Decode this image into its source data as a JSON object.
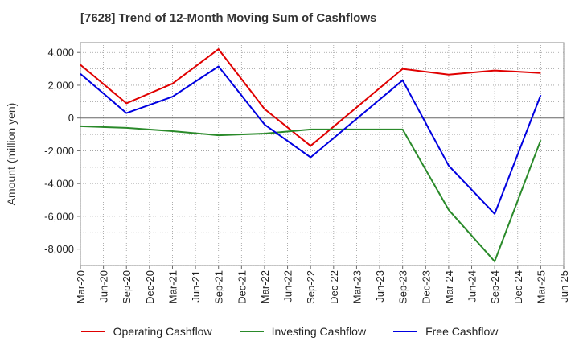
{
  "chart_data": {
    "type": "line",
    "title": "[7628]  Trend of 12-Month Moving Sum of Cashflows",
    "ylabel": "Amount (million yen)",
    "xlabel": "",
    "ylim": [
      -9000,
      4600
    ],
    "y_ticks": [
      4000,
      2000,
      0,
      -2000,
      -4000,
      -6000,
      -8000
    ],
    "y_tick_labels": [
      "4,000",
      "2,000",
      "0",
      "-2,000",
      "-4,000",
      "-6,000",
      "-8,000"
    ],
    "categories": [
      "Mar-20",
      "Jun-20",
      "Sep-20",
      "Dec-20",
      "Mar-21",
      "Jun-21",
      "Sep-21",
      "Dec-21",
      "Mar-22",
      "Jun-22",
      "Sep-22",
      "Dec-22",
      "Mar-23",
      "Jun-23",
      "Sep-23",
      "Dec-23",
      "Mar-24",
      "Jun-24",
      "Sep-24",
      "Dec-24",
      "Mar-25",
      "Jun-25"
    ],
    "grid": true,
    "legend_position": "bottom",
    "series": [
      {
        "name": "Operating Cashflow",
        "color": "#e00000",
        "values": [
          3250,
          null,
          900,
          null,
          2100,
          null,
          4200,
          null,
          550,
          null,
          -1700,
          null,
          null,
          null,
          3000,
          null,
          2650,
          null,
          2900,
          null,
          2750,
          null
        ]
      },
      {
        "name": "Investing Cashflow",
        "color": "#2a8a2a",
        "values": [
          -500,
          null,
          -600,
          null,
          -800,
          null,
          -1050,
          null,
          -950,
          null,
          -700,
          null,
          null,
          null,
          -700,
          null,
          -5600,
          null,
          -8750,
          null,
          -1350,
          null
        ]
      },
      {
        "name": "Free Cashflow",
        "color": "#0000e0",
        "values": [
          2700,
          null,
          300,
          null,
          1300,
          null,
          3150,
          null,
          -400,
          null,
          -2400,
          null,
          null,
          null,
          2300,
          null,
          -2900,
          null,
          -5850,
          null,
          1400,
          null
        ]
      }
    ]
  }
}
